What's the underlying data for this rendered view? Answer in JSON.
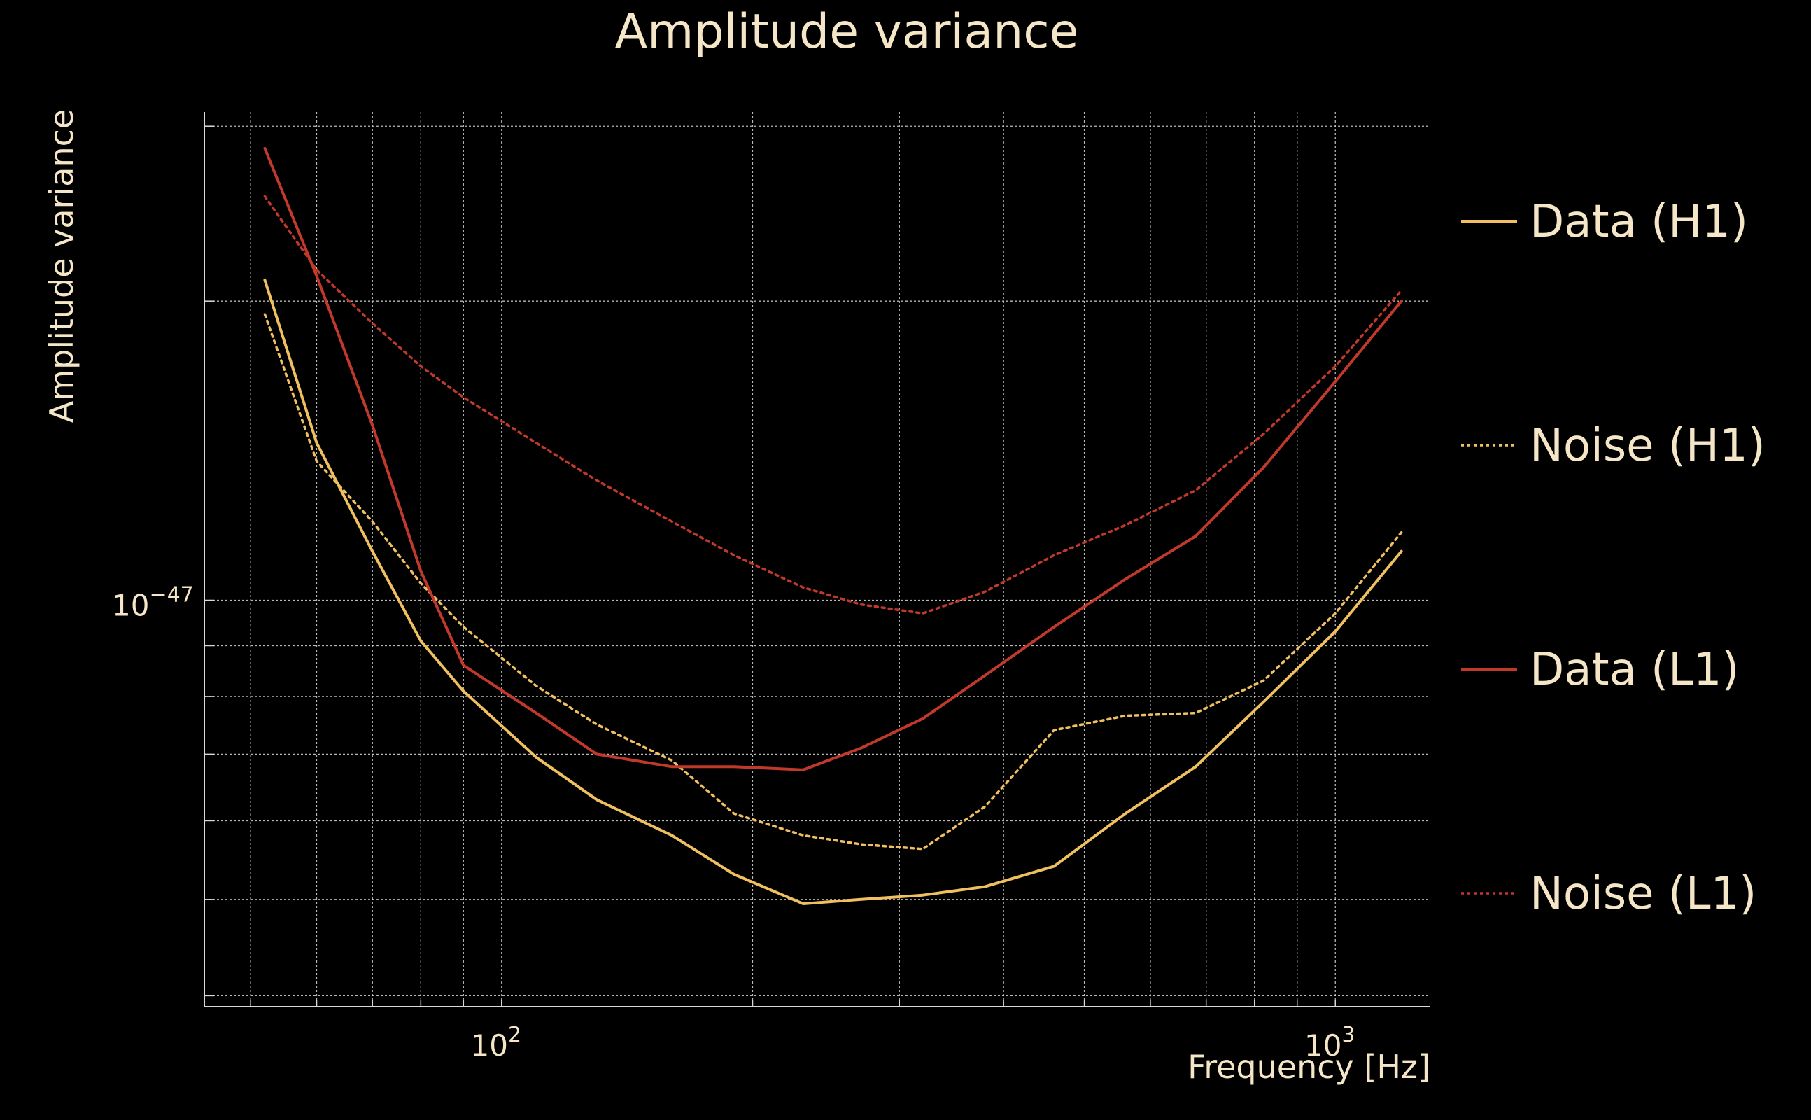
{
  "chart_data": {
    "type": "line",
    "title": "Amplitude variance",
    "xlabel": "Frequency [Hz]",
    "ylabel": "Amplitude variance",
    "xscale": "log",
    "yscale": "log",
    "xlim": [
      44,
      1300
    ],
    "ylim": [
      3.9e-48,
      3.1e-47
    ],
    "grid": true,
    "legend_position": "right",
    "x_tick_labels": [
      {
        "value": 100,
        "base": "10",
        "exp": "2"
      },
      {
        "value": 1000,
        "base": "10",
        "exp": "3"
      }
    ],
    "y_tick_labels": [
      {
        "value": 1e-47,
        "base": "10",
        "exp": "−47"
      }
    ],
    "x_minor_ticks": [
      50,
      60,
      70,
      80,
      90,
      200,
      300,
      400,
      500,
      600,
      700,
      800,
      900
    ],
    "y_minor_ticks": [
      4e-48,
      5e-48,
      6e-48,
      7e-48,
      8e-48,
      9e-48,
      2e-47,
      3e-47
    ],
    "x": [
      52,
      60,
      70,
      80,
      90,
      110,
      130,
      160,
      190,
      230,
      270,
      320,
      380,
      460,
      560,
      680,
      820,
      1000,
      1200
    ],
    "series": [
      {
        "name": "Data (H1)",
        "color": "#f0c060",
        "style": "solid",
        "values": [
          2.1e-47,
          1.44e-47,
          1.12e-47,
          9.1e-48,
          8.1e-48,
          6.95e-48,
          6.3e-48,
          5.8e-48,
          5.3e-48,
          4.95e-48,
          5e-48,
          5.05e-48,
          5.15e-48,
          5.4e-48,
          6.1e-48,
          6.8e-48,
          7.9e-48,
          9.3e-48,
          1.12e-47
        ]
      },
      {
        "name": "Noise (H1)",
        "color": "#f0c060",
        "style": "dotted",
        "values": [
          1.94e-47,
          1.38e-47,
          1.2e-47,
          1.04e-47,
          9.4e-48,
          8.2e-48,
          7.5e-48,
          6.9e-48,
          6.1e-48,
          5.8e-48,
          5.68e-48,
          5.62e-48,
          6.2e-48,
          7.4e-48,
          7.65e-48,
          7.7e-48,
          8.3e-48,
          9.7e-48,
          1.17e-47
        ]
      },
      {
        "name": "Data (L1)",
        "color": "#c0392b",
        "style": "solid",
        "values": [
          2.85e-47,
          2.12e-47,
          1.5e-47,
          1.07e-47,
          8.6e-48,
          7.7e-48,
          7e-48,
          6.8e-48,
          6.8e-48,
          6.75e-48,
          7.1e-48,
          7.6e-48,
          8.4e-48,
          9.4e-48,
          1.05e-47,
          1.16e-47,
          1.36e-47,
          1.66e-47,
          2e-47
        ]
      },
      {
        "name": "Noise (L1)",
        "color": "#c0392b",
        "style": "dotted",
        "values": [
          2.55e-47,
          2.15e-47,
          1.9e-47,
          1.72e-47,
          1.6e-47,
          1.44e-47,
          1.32e-47,
          1.2e-47,
          1.11e-47,
          1.03e-47,
          9.9e-48,
          9.7e-48,
          1.02e-47,
          1.11e-47,
          1.19e-47,
          1.29e-47,
          1.47e-47,
          1.72e-47,
          2.05e-47
        ]
      }
    ]
  },
  "colors": {
    "background": "#000000",
    "text": "#f5e6c8",
    "grid": "#d9d9d9"
  }
}
